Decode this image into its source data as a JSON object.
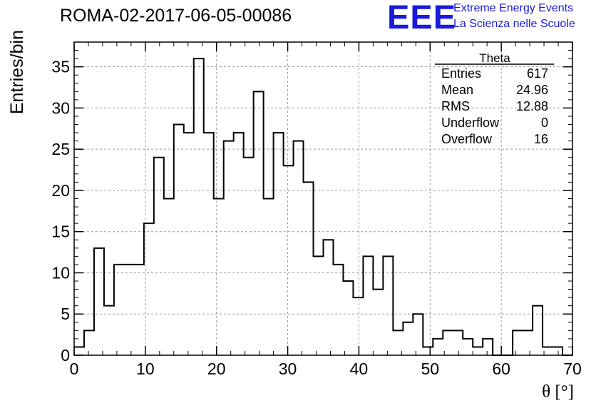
{
  "header": {
    "run_id": "ROMA-02-2017-06-05-00086",
    "logo_text": "EEE",
    "logo_line1": "Extreme Energy Events",
    "logo_line2": "La Scienza nelle Scuole"
  },
  "stats_box": {
    "title": "Theta",
    "rows": [
      {
        "label": "Entries",
        "value": "617"
      },
      {
        "label": "Mean",
        "value": "24.96"
      },
      {
        "label": "RMS",
        "value": "12.88"
      },
      {
        "label": "Underflow",
        "value": "0"
      },
      {
        "label": "Overflow",
        "value": "16"
      }
    ]
  },
  "colors": {
    "histogram_line": "#000000",
    "grid": "#9a9a9a",
    "logo": "#1a1adb"
  },
  "chart_data": {
    "type": "histogram",
    "xlabel": "θ [°]",
    "ylabel": "Entries/bin",
    "xlim": [
      0,
      70
    ],
    "ylim": [
      0,
      38
    ],
    "x_ticks": [
      0,
      10,
      20,
      30,
      40,
      50,
      60,
      70
    ],
    "y_ticks": [
      0,
      5,
      10,
      15,
      20,
      25,
      30,
      35
    ],
    "grid": true,
    "bin_width": 1.4,
    "bin_edges_start": 0,
    "values": [
      1,
      3,
      13,
      6,
      11,
      11,
      11,
      16,
      24,
      19,
      28,
      27,
      36,
      27,
      19,
      26,
      27,
      24,
      32,
      19,
      27,
      23,
      26,
      21,
      12,
      14,
      11,
      9,
      7,
      12,
      8,
      12,
      3,
      4,
      5,
      1,
      2,
      3,
      3,
      2,
      1,
      2,
      0,
      0,
      3,
      3,
      6,
      1,
      1,
      0
    ]
  }
}
